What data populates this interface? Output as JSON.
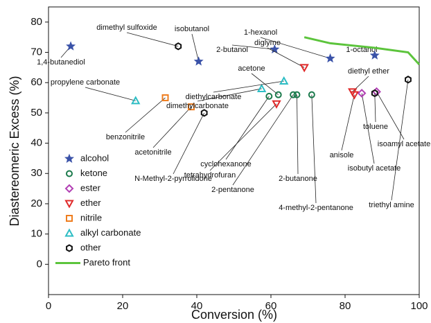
{
  "chart_data": {
    "type": "scatter",
    "x_label": "Conversion (%)",
    "y_label": "Diastereomeric Excess (%)",
    "xlim": [
      0,
      100
    ],
    "ylim": [
      -10,
      85
    ],
    "xticks": [
      0,
      20,
      40,
      60,
      80,
      100
    ],
    "yticks": [
      0,
      10,
      20,
      30,
      40,
      50,
      60,
      70,
      80
    ],
    "legend": "lower left",
    "series": [
      {
        "name": "alcohol",
        "color": "#3a52a8",
        "marker": "star",
        "x": [
          6,
          40.5,
          61,
          76,
          88
        ],
        "values": [
          72,
          67,
          71,
          68,
          69
        ],
        "point_labels": [
          "1,4-butanediol",
          "isobutanol",
          "2-butanol",
          "1-hexanol",
          "1-octanol"
        ]
      },
      {
        "name": "ketone",
        "color": "#1b7a4c",
        "marker": "circle",
        "x": [
          59.5,
          62,
          66,
          67,
          71
        ],
        "values": [
          55.5,
          56,
          56,
          56,
          56
        ],
        "point_labels": [
          "cyclohexanone",
          "acetone",
          "2-pentanone",
          "2-butanone",
          "4-methyl-2-pentanone"
        ]
      },
      {
        "name": "ester",
        "color": "#b23fb4",
        "marker": "diamond",
        "x": [
          84.5,
          88.5
        ],
        "values": [
          56.5,
          57
        ],
        "point_labels": [
          "isobutyl acetate",
          "isoamyl acetate"
        ]
      },
      {
        "name": "ether",
        "color": "#e02a2a",
        "marker": "tridown",
        "x": [
          69,
          61.5,
          82,
          82.5
        ],
        "values": [
          65,
          53,
          57,
          56
        ],
        "point_labels": [
          "diglyme",
          "tetrahydrofuran",
          "diethyl ether",
          "anisole"
        ]
      },
      {
        "name": "nitrile",
        "color": "#ef7d1e",
        "marker": "square",
        "x": [
          31.5,
          38.5
        ],
        "values": [
          55,
          52
        ],
        "point_labels": [
          "benzonitrile",
          "acetonitrile"
        ]
      },
      {
        "name": "alkyl carbonate",
        "color": "#2dbdc4",
        "marker": "triup",
        "x": [
          23.5,
          57.5,
          63.5
        ],
        "values": [
          54,
          58,
          60.5
        ],
        "point_labels": [
          "propylene carbonate",
          "dimethylcarbonate",
          "diethylcarbonate"
        ]
      },
      {
        "name": "other",
        "color": "#111111",
        "marker": "hexagon",
        "x": [
          35,
          42,
          88,
          97
        ],
        "values": [
          72,
          50,
          56.5,
          61
        ],
        "point_labels": [
          "dimethyl sulfoxide",
          "N-Methyl-2-pyrrolidone",
          "toluene",
          "triethyl amine"
        ]
      },
      {
        "name": "Pareto front",
        "color": "#5cc43c",
        "marker": "line",
        "x": [
          69,
          76,
          88,
          97,
          100
        ],
        "values": [
          75,
          73,
          71.5,
          70,
          66
        ]
      }
    ]
  }
}
